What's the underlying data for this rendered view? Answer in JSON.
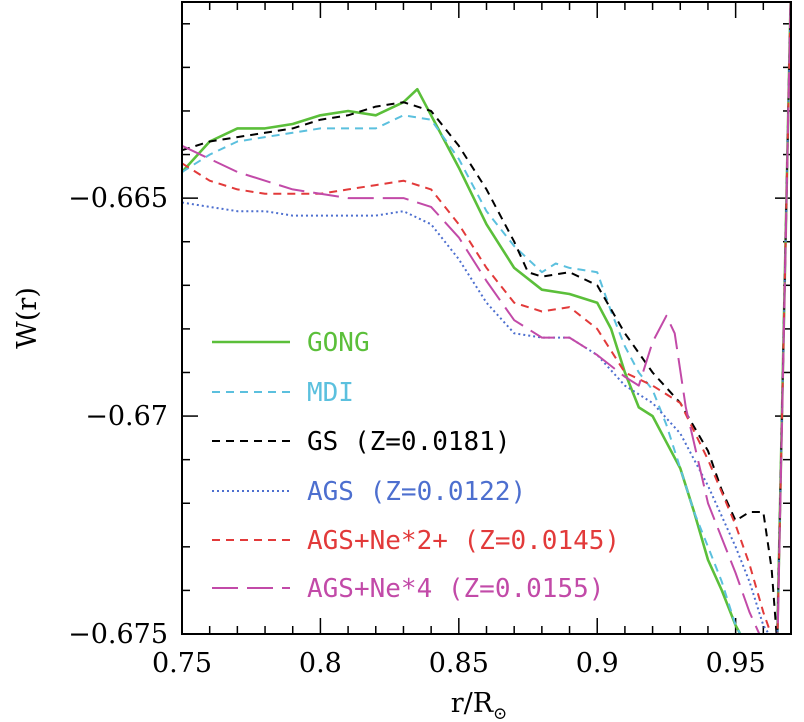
{
  "chart_data": {
    "type": "line",
    "xlabel": "r/R",
    "xlabel_sub": "⊙",
    "ylabel": "W(r)",
    "xlim": [
      0.75,
      0.97
    ],
    "ylim": [
      -0.675,
      -0.6605
    ],
    "xticks": [
      {
        "value": 0.75,
        "label": "0.75"
      },
      {
        "value": 0.8,
        "label": "0.8"
      },
      {
        "value": 0.85,
        "label": "0.85"
      },
      {
        "value": 0.9,
        "label": "0.9"
      },
      {
        "value": 0.95,
        "label": "0.95"
      }
    ],
    "yticks": [
      {
        "value": -0.665,
        "label": "−0.665"
      },
      {
        "value": -0.67,
        "label": "−0.67"
      },
      {
        "value": -0.675,
        "label": "−0.675"
      }
    ],
    "legend_position": "bottom-left",
    "series": [
      {
        "name": "GONG",
        "color": "#5bbf3a",
        "dash": "solid",
        "x": [
          0.75,
          0.76,
          0.77,
          0.78,
          0.79,
          0.8,
          0.81,
          0.82,
          0.83,
          0.835,
          0.84,
          0.85,
          0.86,
          0.87,
          0.88,
          0.89,
          0.9,
          0.905,
          0.91,
          0.915,
          0.92,
          0.925,
          0.93,
          0.935,
          0.94,
          0.945,
          0.95,
          0.955,
          0.96,
          0.965,
          0.97
        ],
        "y": [
          -0.6644,
          -0.6637,
          -0.6634,
          -0.6634,
          -0.6633,
          -0.6631,
          -0.663,
          -0.6631,
          -0.6628,
          -0.6625,
          -0.6631,
          -0.6643,
          -0.6656,
          -0.6666,
          -0.6671,
          -0.6672,
          -0.6674,
          -0.668,
          -0.669,
          -0.6698,
          -0.67,
          -0.6706,
          -0.6712,
          -0.6722,
          -0.6733,
          -0.674,
          -0.6748,
          -0.6754,
          -0.6756,
          -0.6752,
          -0.66
        ]
      },
      {
        "name": "MDI",
        "color": "#5bc0de",
        "dash": "8,6",
        "x": [
          0.75,
          0.76,
          0.77,
          0.78,
          0.79,
          0.8,
          0.81,
          0.82,
          0.83,
          0.84,
          0.85,
          0.86,
          0.87,
          0.88,
          0.885,
          0.89,
          0.9,
          0.905,
          0.91,
          0.915,
          0.92,
          0.925,
          0.93,
          0.935,
          0.94,
          0.945,
          0.95,
          0.955,
          0.96,
          0.965,
          0.97
        ],
        "y": [
          -0.6644,
          -0.664,
          -0.6637,
          -0.6636,
          -0.6635,
          -0.6634,
          -0.6634,
          -0.6634,
          -0.6631,
          -0.6632,
          -0.6641,
          -0.6653,
          -0.6661,
          -0.6667,
          -0.6665,
          -0.6666,
          -0.6667,
          -0.6676,
          -0.6684,
          -0.669,
          -0.6694,
          -0.6702,
          -0.6712,
          -0.6722,
          -0.673,
          -0.6738,
          -0.6748,
          -0.6754,
          -0.6757,
          -0.6754,
          -0.66
        ]
      },
      {
        "name": "GS (Z=0.0181)",
        "color": "#000000",
        "dash": "8,6",
        "x": [
          0.75,
          0.76,
          0.77,
          0.78,
          0.79,
          0.8,
          0.81,
          0.82,
          0.83,
          0.84,
          0.85,
          0.86,
          0.87,
          0.875,
          0.88,
          0.89,
          0.9,
          0.91,
          0.92,
          0.93,
          0.94,
          0.945,
          0.95,
          0.955,
          0.96,
          0.963,
          0.965,
          0.97
        ],
        "y": [
          -0.6639,
          -0.6637,
          -0.6636,
          -0.6635,
          -0.6634,
          -0.6632,
          -0.6631,
          -0.6629,
          -0.6628,
          -0.663,
          -0.6638,
          -0.6648,
          -0.666,
          -0.6667,
          -0.6668,
          -0.6667,
          -0.667,
          -0.6681,
          -0.669,
          -0.6697,
          -0.6708,
          -0.6717,
          -0.6724,
          -0.6722,
          -0.6722,
          -0.6735,
          -0.6752,
          -0.66
        ]
      },
      {
        "name": "AGS (Z=0.0122)",
        "color": "#4d6fcf",
        "dash": "2,3",
        "x": [
          0.75,
          0.76,
          0.77,
          0.78,
          0.79,
          0.8,
          0.81,
          0.82,
          0.83,
          0.84,
          0.85,
          0.86,
          0.87,
          0.88,
          0.89,
          0.9,
          0.91,
          0.92,
          0.93,
          0.94,
          0.95,
          0.955,
          0.96,
          0.965,
          0.97
        ],
        "y": [
          -0.6651,
          -0.6652,
          -0.6653,
          -0.6653,
          -0.6654,
          -0.6654,
          -0.6654,
          -0.6654,
          -0.6653,
          -0.6656,
          -0.6664,
          -0.6674,
          -0.6681,
          -0.6682,
          -0.6682,
          -0.6686,
          -0.6693,
          -0.6697,
          -0.6704,
          -0.6716,
          -0.673,
          -0.6738,
          -0.6748,
          -0.6753,
          -0.66
        ]
      },
      {
        "name": "AGS+Ne*2+ (Z=0.0145)",
        "color": "#e23a3a",
        "dash": "8,6",
        "x": [
          0.75,
          0.76,
          0.77,
          0.78,
          0.79,
          0.8,
          0.81,
          0.82,
          0.83,
          0.84,
          0.85,
          0.86,
          0.87,
          0.88,
          0.89,
          0.9,
          0.91,
          0.92,
          0.93,
          0.94,
          0.95,
          0.955,
          0.96,
          0.965,
          0.97
        ],
        "y": [
          -0.6642,
          -0.6646,
          -0.6648,
          -0.6649,
          -0.6649,
          -0.6649,
          -0.6648,
          -0.6647,
          -0.6646,
          -0.6648,
          -0.6656,
          -0.6666,
          -0.6674,
          -0.6676,
          -0.6675,
          -0.668,
          -0.669,
          -0.6693,
          -0.6697,
          -0.671,
          -0.6725,
          -0.6734,
          -0.6745,
          -0.6754,
          -0.66
        ]
      },
      {
        "name": "AGS+Ne*4 (Z=0.0155)",
        "color": "#c24aa8",
        "dash": "26,9",
        "x": [
          0.75,
          0.76,
          0.77,
          0.78,
          0.79,
          0.8,
          0.81,
          0.82,
          0.83,
          0.84,
          0.85,
          0.86,
          0.87,
          0.88,
          0.89,
          0.9,
          0.91,
          0.915,
          0.92,
          0.925,
          0.928,
          0.932,
          0.94,
          0.95,
          0.955,
          0.96,
          0.965,
          0.97
        ],
        "y": [
          -0.6638,
          -0.6641,
          -0.6644,
          -0.6646,
          -0.6648,
          -0.6649,
          -0.665,
          -0.665,
          -0.665,
          -0.6652,
          -0.6659,
          -0.6669,
          -0.6678,
          -0.6682,
          -0.6682,
          -0.6686,
          -0.6691,
          -0.6693,
          -0.6683,
          -0.6677,
          -0.6681,
          -0.6698,
          -0.672,
          -0.6736,
          -0.6745,
          -0.6752,
          -0.6755,
          -0.66
        ]
      }
    ]
  }
}
